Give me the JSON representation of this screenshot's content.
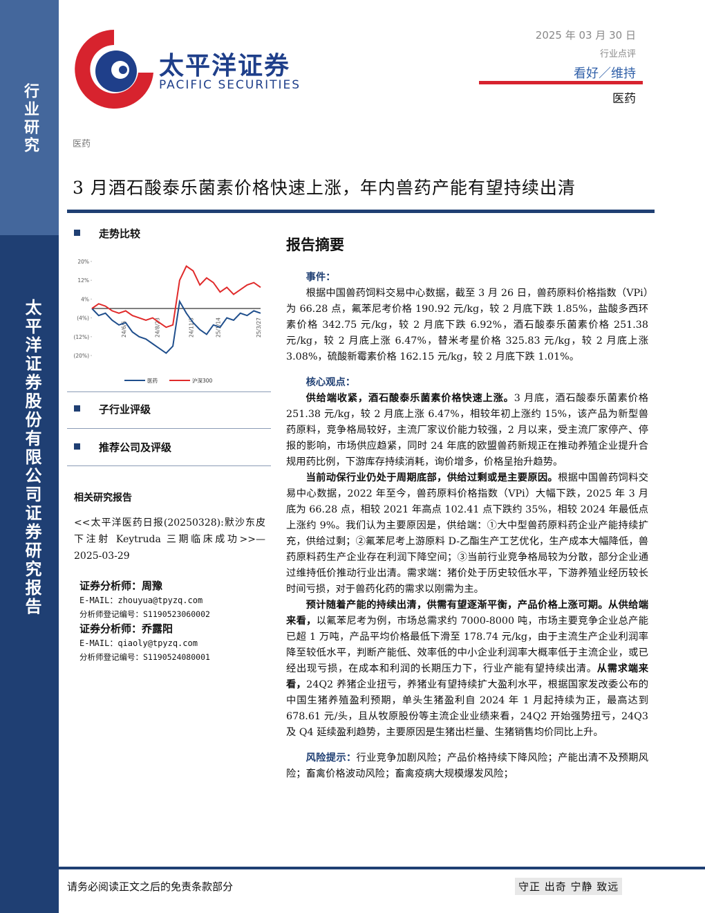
{
  "sidebar": {
    "top": "行业研究",
    "bottom": "太平洋证券股份有限公司证券研究报告"
  },
  "logo": {
    "name": "太平洋证券",
    "english": "PACIFIC SECURITIES"
  },
  "header": {
    "date": "2025 年 03 月 30 日",
    "type": "行业点评",
    "rating": "看好／维持",
    "industry": "医药"
  },
  "sector_tag": "医药",
  "title": "3 月酒石酸泰乐菌素价格快速上涨，年内兽药产能有望持续出清",
  "left": {
    "trend_heading": "走势比较",
    "sub_rating_heading": "子行业评级",
    "recommend_heading": "推荐公司及评级",
    "related_heading": "相关研究报告",
    "related_report": "<<太平洋医药日报(20250328):默沙东皮下注射 Keytruda 三期临床成功>>—2025-03-29",
    "analysts": [
      {
        "name_line": "证券分析师：周豫",
        "email": "E-MAIL：zhouyua@tpyzq.com",
        "reg": "分析师登记编号：S1190523060002"
      },
      {
        "name_line": "证券分析师：乔露阳",
        "email": "E-MAIL：qiaoly@tpyzq.com",
        "reg": "分析师登记编号：S1190524080001"
      }
    ]
  },
  "chart_data": {
    "type": "line",
    "categories": [
      null,
      null,
      null,
      null,
      null,
      "24/6/5",
      null,
      null,
      null,
      null,
      "24/8/23",
      null,
      null,
      null,
      null,
      "24/11/3",
      null,
      null,
      null,
      "25/1/14",
      null,
      null,
      null,
      null,
      null,
      "25/3/27"
    ],
    "series": [
      {
        "name": "医药",
        "color": "#1f4e8c",
        "values": [
          0,
          -3,
          -2,
          -5,
          -7,
          -6,
          -10,
          -12,
          -13,
          -15,
          -17,
          -19,
          -16,
          3,
          -2,
          -6,
          -9,
          -11,
          -7,
          -8,
          -4,
          -5,
          -2,
          -3,
          -1,
          -2
        ]
      },
      {
        "name": "沪深300",
        "color": "#e02a2a",
        "values": [
          0,
          2,
          1,
          -1,
          -2,
          -1,
          -3,
          -4,
          -5,
          -4,
          -6,
          -8,
          -7,
          12,
          18,
          16,
          10,
          13,
          11,
          7,
          9,
          6,
          8,
          10,
          11,
          9
        ]
      }
    ],
    "ylim": [
      -20,
      20
    ],
    "yticks": [
      {
        "value": 20,
        "label": "20%"
      },
      {
        "value": 12,
        "label": "12%"
      },
      {
        "value": 4,
        "label": "4%"
      },
      {
        "value": -4,
        "label": "(4%)"
      },
      {
        "value": -12,
        "label": "(12%)"
      },
      {
        "value": -20,
        "label": "(20%)"
      }
    ]
  },
  "summary": {
    "heading": "报告摘要",
    "sections": [
      {
        "label": "事件：",
        "inline_label": false,
        "paragraphs": [
          [
            {
              "text": "根据中国兽药饲料交易中心数据，截至 3 月 26 日，兽药原料价格指数（VPi）为 66.28 点，氟苯尼考价格 190.92 元/kg，较 2 月底下跌 1.85%，盐酸多西环素价格 342.75 元/kg，较 2 月底下跌 6.92%，酒石酸泰乐菌素价格 251.38 元/kg，较 2 月底上涨 6.47%，替米考星价格 325.83 元/kg，较 2 月底上涨 3.08%，硫酸新霉素价格 162.15 元/kg，较 2 月底下跌 1.01%。",
              "bold": false
            }
          ]
        ]
      },
      {
        "label": "核心观点：",
        "inline_label": false,
        "paragraphs": [
          [
            {
              "text": "供给端收紧，酒石酸泰乐菌素价格快速上涨。",
              "bold": true
            },
            {
              "text": "3 月底，酒石酸泰乐菌素价格 251.38 元/kg，较 2 月底上涨 6.47%，相较年初上涨约 15%，该产品为新型兽药原料，竞争格局较好，主流厂家议价能力较强，2 月以来，受主流厂家停产、停报的影响，市场供应趋紧，同时 24 年底的欧盟兽药新规正在推动养殖企业提升合规用药比例，下游库存持续消耗，询价增多，价格呈抬升趋势。",
              "bold": false
            }
          ],
          [
            {
              "text": "当前动保行业仍处于周期底部，供给过剩或是主要原因。",
              "bold": true
            },
            {
              "text": "根据中国兽药饲料交易中心数据，2022 年至今，兽药原料价格指数（VPi）大幅下跌，2025 年 3 月底为 66.28 点，相较 2021 年高点 102.41 点下跌约 35%，相较 2024 年最低点上涨约 9%。我们认为主要原因是，供给端：①大中型兽药原料药企业产能持续扩充，供给过剩；②氟苯尼考上游原料 D-乙酯生产工艺优化，生产成本大幅降低，兽药原料药生产企业存在利润下降空间；③当前行业竞争格局较为分散，部分企业通过维持低价推动行业出清。需求端：猪价处于历史较低水平，下游养殖业经历较长时间亏损，对于兽药化药的需求以刚需为主。",
              "bold": false
            }
          ],
          [
            {
              "text": "预计随着产能的持续出清，供需有望逐渐平衡，产品价格上涨可期。从供给端来看，",
              "bold": true
            },
            {
              "text": "以氟苯尼考为例，市场总需求约 7000-8000 吨，市场主要竞争企业总产能已超 1 万吨，产品平均价格最低下滑至 178.74 元/kg，由于主流生产企业利润率降至较低水平，判断产能低、效率低的中小企业利润率大概率低于主流企业，或已经出现亏损，在成本和利润的长期压力下，行业产能有望持续出清。",
              "bold": false
            },
            {
              "text": "从需求端来看，",
              "bold": true
            },
            {
              "text": "24Q2 养猪企业扭亏，养猪业有望持续扩大盈利水平，根据国家发改委公布的中国生猪养殖盈利预期，单头生猪盈利自 2024 年 1 月起持续为正，最高达到 678.61 元/头，且从牧原股份等主流企业业绩来看，24Q2 开始强势扭亏，24Q3 及 Q4 延续盈利趋势，主要原因是生猪出栏量、生猪销售均价同比上升。",
              "bold": false
            }
          ]
        ]
      },
      {
        "label": "风险提示：",
        "inline_label": true,
        "paragraphs": [
          [
            {
              "text": "行业竞争加剧风险；产品价格持续下降风险；产能出清不及预期风险；畜禽价格波动风险；畜禽疫病大规模爆发风险；",
              "bold": false
            }
          ]
        ]
      }
    ]
  },
  "footer": {
    "disclaimer": "请务必阅读正文之后的免责条款部分",
    "motto": "守正 出奇 宁静 致远"
  }
}
